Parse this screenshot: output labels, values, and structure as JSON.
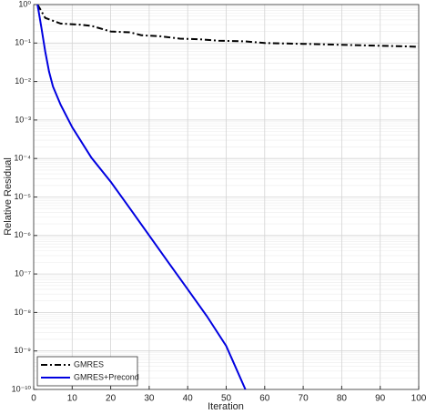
{
  "chart_data": {
    "type": "line",
    "xlabel": "Iteration",
    "ylabel": "Relative Residual",
    "xlim": [
      0,
      100
    ],
    "xticks": [
      0,
      10,
      20,
      30,
      40,
      50,
      60,
      70,
      80,
      90,
      100
    ],
    "ylim": [
      1e-10,
      1
    ],
    "log_y": true,
    "yticks": [
      {
        "value": 1e-10,
        "label": "10⁻¹⁰"
      },
      {
        "value": 1e-09,
        "label": "10⁻⁹"
      },
      {
        "value": 1e-08,
        "label": "10⁻⁸"
      },
      {
        "value": 1e-07,
        "label": "10⁻⁷"
      },
      {
        "value": 1e-06,
        "label": "10⁻⁶"
      },
      {
        "value": 1e-05,
        "label": "10⁻⁵"
      },
      {
        "value": 0.0001,
        "label": "10⁻⁴"
      },
      {
        "value": 0.001,
        "label": "10⁻³"
      },
      {
        "value": 0.01,
        "label": "10⁻²"
      },
      {
        "value": 0.1,
        "label": "10⁻¹"
      },
      {
        "value": 1,
        "label": "10⁰"
      }
    ],
    "grid": true,
    "minor_grid": true,
    "legend": "lower left",
    "series": [
      {
        "name": "GMRES",
        "color": "#000000",
        "style": "dash-dot",
        "x": [
          1,
          3,
          7,
          12,
          15,
          20,
          25,
          28,
          33,
          38,
          43,
          48,
          55,
          60,
          70,
          80,
          90,
          100
        ],
        "values": [
          1,
          0.45,
          0.32,
          0.3,
          0.28,
          0.2,
          0.19,
          0.16,
          0.15,
          0.13,
          0.125,
          0.115,
          0.11,
          0.1,
          0.095,
          0.09,
          0.085,
          0.08
        ]
      },
      {
        "name": "GMRES+Precond",
        "color": "#0000e0",
        "style": "solid",
        "x": [
          1,
          2,
          3,
          4,
          5,
          7,
          10,
          15,
          20,
          25,
          30,
          35,
          40,
          45,
          50,
          55
        ],
        "values": [
          1,
          0.25,
          0.06,
          0.018,
          0.0074,
          0.0025,
          0.00065,
          0.000105,
          2.5e-05,
          5e-06,
          1e-06,
          2e-07,
          4e-08,
          8e-09,
          1.35e-09,
          1e-10
        ]
      }
    ]
  }
}
